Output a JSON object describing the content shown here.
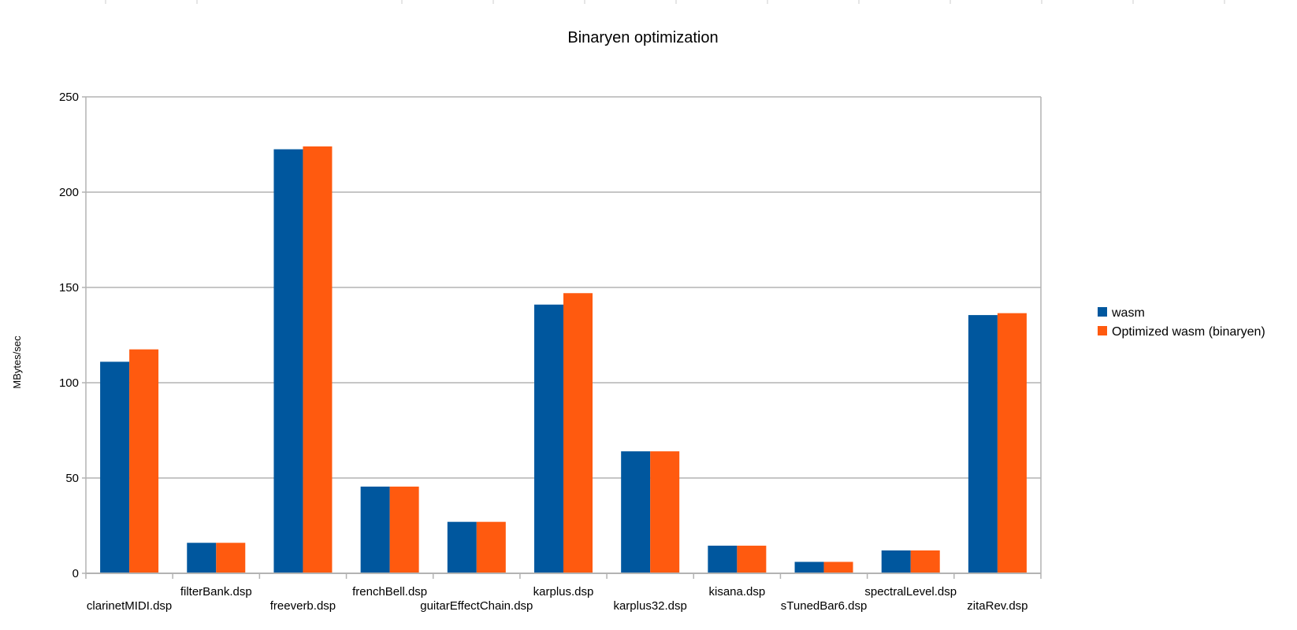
{
  "chart_data": {
    "type": "bar",
    "title": "Binaryen optimization",
    "xlabel": "",
    "ylabel": "MBytes/sec",
    "ylim": [
      0,
      250
    ],
    "yticks": [
      0,
      50,
      100,
      150,
      200,
      250
    ],
    "grid": true,
    "legend_position": "right",
    "categories": [
      "clarinetMIDI.dsp",
      "filterBank.dsp",
      "freeverb.dsp",
      "frenchBell.dsp",
      "guitarEffectChain.dsp",
      "karplus.dsp",
      "karplus32.dsp",
      "kisana.dsp",
      "sTunedBar6.dsp",
      "spectralLevel.dsp",
      "zitaRev.dsp"
    ],
    "series": [
      {
        "name": "wasm",
        "color": "#00579e",
        "values": [
          111,
          16,
          222.5,
          45.5,
          27,
          141,
          64,
          14.5,
          6,
          12,
          135.5
        ]
      },
      {
        "name": "Optimized wasm (binaryen)",
        "color": "#ff5a0f",
        "values": [
          117.5,
          16,
          224,
          45.5,
          27,
          147,
          64,
          14.5,
          6,
          12,
          136.5
        ]
      }
    ]
  }
}
